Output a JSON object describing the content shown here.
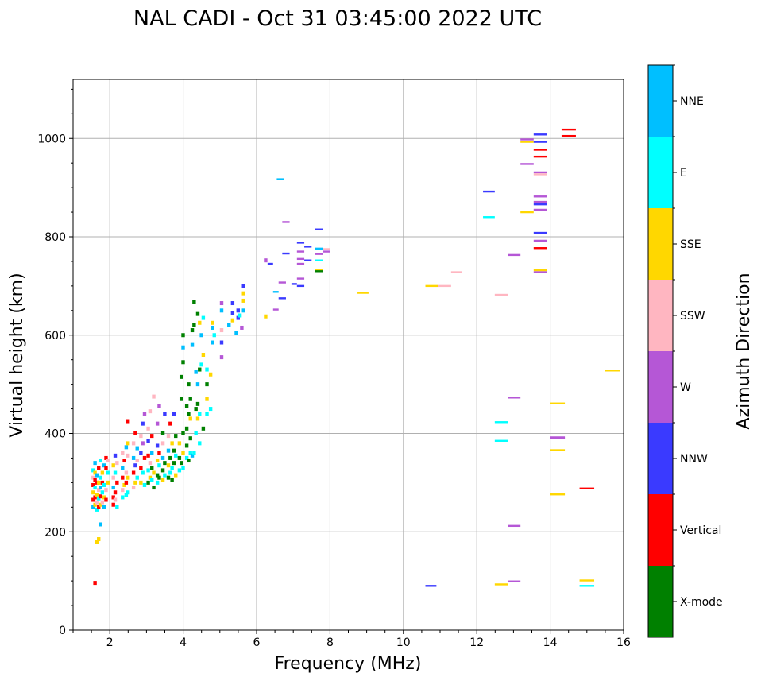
{
  "chart_data": {
    "type": "scatter",
    "title": "NAL CADI - Oct 31 03:45:00 2022 UTC",
    "xlabel": "Frequency (MHz)",
    "ylabel": "Virtual height (km)",
    "xlim": [
      1,
      16
    ],
    "ylim": [
      0,
      1120
    ],
    "xticks": [
      2,
      4,
      6,
      8,
      10,
      12,
      14,
      16
    ],
    "yticks": [
      0,
      200,
      400,
      600,
      800,
      1000
    ],
    "grid": true,
    "colorbar": {
      "label": "Azimuth Direction",
      "categories": [
        {
          "name": "X-mode",
          "color": "#008000"
        },
        {
          "name": "Vertical",
          "color": "#ff0000"
        },
        {
          "name": "NNW",
          "color": "#3a3aff"
        },
        {
          "name": "W",
          "color": "#b557d6"
        },
        {
          "name": "SSW",
          "color": "#ffb6c1"
        },
        {
          "name": "SSE",
          "color": "#ffd700"
        },
        {
          "name": "E",
          "color": "#00ffff"
        },
        {
          "name": "NNE",
          "color": "#00bfff"
        }
      ]
    },
    "echoes_note": "cells: [freq MHz, height km, category index]; segments: [f start, f end, height km, category index]",
    "cells": [
      [
        1.55,
        96,
        1
      ],
      [
        1.6,
        180,
        5
      ],
      [
        1.65,
        185,
        5
      ],
      [
        1.7,
        215,
        7
      ],
      [
        1.5,
        250,
        7
      ],
      [
        1.5,
        265,
        1
      ],
      [
        1.5,
        280,
        5
      ],
      [
        1.5,
        295,
        1
      ],
      [
        1.5,
        310,
        4
      ],
      [
        1.5,
        325,
        6
      ],
      [
        1.55,
        255,
        5
      ],
      [
        1.55,
        270,
        1
      ],
      [
        1.55,
        290,
        6
      ],
      [
        1.55,
        305,
        1
      ],
      [
        1.55,
        320,
        5
      ],
      [
        1.55,
        340,
        7
      ],
      [
        1.6,
        245,
        6
      ],
      [
        1.6,
        260,
        4
      ],
      [
        1.6,
        275,
        5
      ],
      [
        1.6,
        300,
        1
      ],
      [
        1.6,
        315,
        7
      ],
      [
        1.65,
        250,
        1
      ],
      [
        1.65,
        268,
        6
      ],
      [
        1.65,
        285,
        4
      ],
      [
        1.65,
        300,
        5
      ],
      [
        1.65,
        330,
        1
      ],
      [
        1.7,
        255,
        5
      ],
      [
        1.7,
        272,
        1
      ],
      [
        1.7,
        290,
        7
      ],
      [
        1.7,
        310,
        6
      ],
      [
        1.7,
        345,
        6
      ],
      [
        1.75,
        260,
        4
      ],
      [
        1.75,
        280,
        6
      ],
      [
        1.75,
        300,
        1
      ],
      [
        1.75,
        320,
        5
      ],
      [
        1.8,
        250,
        7
      ],
      [
        1.8,
        270,
        5
      ],
      [
        1.8,
        295,
        6
      ],
      [
        1.8,
        335,
        7
      ],
      [
        1.85,
        265,
        1
      ],
      [
        1.85,
        285,
        4
      ],
      [
        1.85,
        330,
        1
      ],
      [
        1.85,
        350,
        1
      ],
      [
        1.9,
        300,
        5
      ],
      [
        1.9,
        320,
        6
      ],
      [
        1.9,
        345,
        4
      ],
      [
        2.05,
        255,
        1
      ],
      [
        2.05,
        270,
        1
      ],
      [
        2.05,
        290,
        7
      ],
      [
        2.05,
        310,
        4
      ],
      [
        2.05,
        335,
        5
      ],
      [
        2.1,
        265,
        4
      ],
      [
        2.1,
        280,
        1
      ],
      [
        2.1,
        320,
        6
      ],
      [
        2.1,
        355,
        2
      ],
      [
        2.15,
        250,
        6
      ],
      [
        2.15,
        300,
        1
      ],
      [
        2.15,
        340,
        4
      ],
      [
        2.3,
        270,
        6
      ],
      [
        2.3,
        285,
        4
      ],
      [
        2.3,
        310,
        1
      ],
      [
        2.3,
        330,
        7
      ],
      [
        2.3,
        360,
        4
      ],
      [
        2.35,
        295,
        5
      ],
      [
        2.35,
        345,
        1
      ],
      [
        2.4,
        275,
        6
      ],
      [
        2.4,
        300,
        1
      ],
      [
        2.4,
        320,
        4
      ],
      [
        2.4,
        372,
        7
      ],
      [
        2.45,
        280,
        6
      ],
      [
        2.45,
        310,
        5
      ],
      [
        2.45,
        355,
        4
      ],
      [
        2.45,
        380,
        5
      ],
      [
        2.45,
        425,
        1
      ],
      [
        2.6,
        290,
        4
      ],
      [
        2.6,
        320,
        1
      ],
      [
        2.6,
        350,
        7
      ],
      [
        2.6,
        380,
        4
      ],
      [
        2.65,
        300,
        5
      ],
      [
        2.65,
        335,
        2
      ],
      [
        2.65,
        400,
        1
      ],
      [
        2.7,
        310,
        6
      ],
      [
        2.7,
        345,
        4
      ],
      [
        2.7,
        370,
        7
      ],
      [
        2.8,
        300,
        5
      ],
      [
        2.8,
        330,
        1
      ],
      [
        2.8,
        360,
        2
      ],
      [
        2.8,
        395,
        4
      ],
      [
        2.85,
        320,
        6
      ],
      [
        2.85,
        380,
        3
      ],
      [
        2.85,
        420,
        2
      ],
      [
        2.9,
        295,
        6
      ],
      [
        2.9,
        350,
        1
      ],
      [
        2.9,
        440,
        3
      ],
      [
        3.0,
        300,
        0
      ],
      [
        3.0,
        325,
        6
      ],
      [
        3.0,
        355,
        1
      ],
      [
        3.0,
        385,
        2
      ],
      [
        3.0,
        410,
        4
      ],
      [
        3.05,
        310,
        5
      ],
      [
        3.05,
        340,
        4
      ],
      [
        3.05,
        445,
        4
      ],
      [
        3.1,
        305,
        6
      ],
      [
        3.1,
        330,
        0
      ],
      [
        3.1,
        360,
        7
      ],
      [
        3.1,
        395,
        1
      ],
      [
        3.15,
        290,
        0
      ],
      [
        3.15,
        320,
        5
      ],
      [
        3.15,
        475,
        4
      ],
      [
        3.25,
        300,
        6
      ],
      [
        3.25,
        315,
        0
      ],
      [
        3.25,
        345,
        5
      ],
      [
        3.25,
        375,
        2
      ],
      [
        3.25,
        420,
        3
      ],
      [
        3.3,
        310,
        0
      ],
      [
        3.3,
        335,
        6
      ],
      [
        3.3,
        360,
        1
      ],
      [
        3.3,
        455,
        3
      ],
      [
        3.4,
        305,
        5
      ],
      [
        3.4,
        325,
        0
      ],
      [
        3.4,
        350,
        7
      ],
      [
        3.4,
        380,
        4
      ],
      [
        3.4,
        400,
        0
      ],
      [
        3.45,
        315,
        6
      ],
      [
        3.45,
        340,
        0
      ],
      [
        3.45,
        440,
        2
      ],
      [
        3.55,
        310,
        0
      ],
      [
        3.55,
        335,
        5
      ],
      [
        3.55,
        365,
        7
      ],
      [
        3.55,
        395,
        4
      ],
      [
        3.6,
        320,
        6
      ],
      [
        3.6,
        350,
        0
      ],
      [
        3.6,
        420,
        1
      ],
      [
        3.65,
        305,
        0
      ],
      [
        3.65,
        330,
        6
      ],
      [
        3.65,
        380,
        5
      ],
      [
        3.7,
        340,
        0
      ],
      [
        3.7,
        365,
        0
      ],
      [
        3.7,
        440,
        2
      ],
      [
        3.75,
        315,
        5
      ],
      [
        3.75,
        355,
        6
      ],
      [
        3.75,
        395,
        0
      ],
      [
        3.85,
        325,
        6
      ],
      [
        3.85,
        350,
        0
      ],
      [
        3.85,
        380,
        5
      ],
      [
        3.9,
        340,
        0
      ],
      [
        3.9,
        470,
        0
      ],
      [
        3.9,
        515,
        0
      ],
      [
        3.95,
        330,
        6
      ],
      [
        3.95,
        360,
        5
      ],
      [
        3.95,
        400,
        0
      ],
      [
        3.95,
        545,
        0
      ],
      [
        3.95,
        575,
        7
      ],
      [
        3.95,
        600,
        0
      ],
      [
        4.05,
        350,
        6
      ],
      [
        4.05,
        375,
        0
      ],
      [
        4.05,
        410,
        0
      ],
      [
        4.05,
        455,
        0
      ],
      [
        4.1,
        345,
        0
      ],
      [
        4.1,
        440,
        0
      ],
      [
        4.1,
        500,
        0
      ],
      [
        4.15,
        360,
        6
      ],
      [
        4.15,
        390,
        0
      ],
      [
        4.15,
        430,
        5
      ],
      [
        4.15,
        470,
        0
      ],
      [
        4.2,
        355,
        7
      ],
      [
        4.2,
        580,
        7
      ],
      [
        4.2,
        610,
        0
      ],
      [
        4.25,
        360,
        6
      ],
      [
        4.25,
        620,
        0
      ],
      [
        4.25,
        668,
        0
      ],
      [
        4.3,
        400,
        6
      ],
      [
        4.3,
        450,
        0
      ],
      [
        4.3,
        525,
        7
      ],
      [
        4.35,
        430,
        5
      ],
      [
        4.35,
        460,
        0
      ],
      [
        4.35,
        500,
        7
      ],
      [
        4.35,
        643,
        0
      ],
      [
        4.4,
        380,
        6
      ],
      [
        4.4,
        440,
        6
      ],
      [
        4.4,
        530,
        0
      ],
      [
        4.4,
        625,
        5
      ],
      [
        4.45,
        540,
        6
      ],
      [
        4.45,
        600,
        7
      ],
      [
        4.5,
        410,
        0
      ],
      [
        4.5,
        560,
        5
      ],
      [
        4.5,
        635,
        6
      ],
      [
        4.6,
        440,
        6
      ],
      [
        4.6,
        470,
        5
      ],
      [
        4.6,
        500,
        0
      ],
      [
        4.6,
        530,
        6
      ],
      [
        4.7,
        450,
        6
      ],
      [
        4.7,
        520,
        5
      ],
      [
        4.75,
        585,
        7
      ],
      [
        4.75,
        615,
        7
      ],
      [
        4.75,
        625,
        5
      ],
      [
        4.8,
        600,
        6
      ],
      [
        5.0,
        555,
        3
      ],
      [
        5.0,
        585,
        2
      ],
      [
        5.0,
        610,
        4
      ],
      [
        5.0,
        650,
        7
      ],
      [
        5.0,
        665,
        3
      ],
      [
        5.2,
        620,
        7
      ],
      [
        5.3,
        630,
        5
      ],
      [
        5.3,
        645,
        2
      ],
      [
        5.3,
        665,
        2
      ],
      [
        5.4,
        605,
        7
      ],
      [
        5.45,
        635,
        2
      ],
      [
        5.45,
        650,
        2
      ],
      [
        5.5,
        640,
        6
      ],
      [
        5.55,
        615,
        3
      ],
      [
        5.6,
        650,
        7
      ],
      [
        5.6,
        670,
        5
      ],
      [
        5.6,
        685,
        5
      ],
      [
        5.6,
        700,
        2
      ],
      [
        6.2,
        638,
        5
      ],
      [
        6.2,
        752,
        3
      ]
    ],
    "segments": [
      [
        6.3,
        6.45,
        745,
        2
      ],
      [
        6.45,
        6.6,
        652,
        3
      ],
      [
        6.45,
        6.6,
        688,
        7
      ],
      [
        6.6,
        6.8,
        675,
        2
      ],
      [
        6.6,
        6.8,
        707,
        3
      ],
      [
        6.55,
        6.75,
        917,
        7
      ],
      [
        6.7,
        6.9,
        830,
        3
      ],
      [
        6.7,
        6.9,
        766,
        2
      ],
      [
        6.95,
        7.1,
        704,
        2
      ],
      [
        7.1,
        7.3,
        700,
        2
      ],
      [
        7.1,
        7.3,
        715,
        3
      ],
      [
        7.1,
        7.3,
        745,
        3
      ],
      [
        7.1,
        7.3,
        755,
        3
      ],
      [
        7.1,
        7.3,
        770,
        3
      ],
      [
        7.1,
        7.3,
        788,
        2
      ],
      [
        7.3,
        7.5,
        752,
        2
      ],
      [
        7.3,
        7.5,
        780,
        2
      ],
      [
        7.6,
        7.8,
        815,
        2
      ],
      [
        7.6,
        7.8,
        776,
        7
      ],
      [
        7.6,
        7.8,
        765,
        3
      ],
      [
        7.6,
        7.8,
        752,
        6
      ],
      [
        7.6,
        7.8,
        733,
        5
      ],
      [
        7.6,
        7.8,
        730,
        0
      ],
      [
        7.8,
        8.0,
        775,
        4
      ],
      [
        7.8,
        8.0,
        770,
        3
      ],
      [
        8.75,
        9.05,
        686,
        5
      ],
      [
        10.6,
        10.95,
        700,
        5
      ],
      [
        10.95,
        11.3,
        700,
        4
      ],
      [
        11.3,
        11.6,
        728,
        4
      ],
      [
        10.6,
        10.9,
        90,
        2
      ],
      [
        12.17,
        12.49,
        892,
        2
      ],
      [
        12.17,
        12.49,
        840,
        6
      ],
      [
        12.49,
        12.84,
        682,
        4
      ],
      [
        12.49,
        12.84,
        423,
        6
      ],
      [
        12.49,
        12.84,
        385,
        6
      ],
      [
        12.49,
        12.84,
        93,
        5
      ],
      [
        12.84,
        13.19,
        763,
        3
      ],
      [
        12.84,
        13.19,
        473,
        3
      ],
      [
        12.84,
        13.19,
        212,
        3
      ],
      [
        12.84,
        13.19,
        99,
        3
      ],
      [
        13.19,
        13.55,
        998,
        3
      ],
      [
        13.19,
        13.55,
        993,
        5
      ],
      [
        13.19,
        13.55,
        948,
        3
      ],
      [
        13.19,
        13.55,
        850,
        5
      ],
      [
        13.55,
        13.92,
        1008,
        2
      ],
      [
        13.55,
        13.92,
        993,
        2
      ],
      [
        13.55,
        13.92,
        977,
        1
      ],
      [
        13.55,
        13.92,
        963,
        1
      ],
      [
        13.55,
        13.92,
        931,
        3
      ],
      [
        13.55,
        13.92,
        927,
        4
      ],
      [
        13.55,
        13.92,
        882,
        3
      ],
      [
        13.55,
        13.92,
        871,
        3
      ],
      [
        13.55,
        13.92,
        866,
        2
      ],
      [
        13.55,
        13.92,
        855,
        3
      ],
      [
        13.55,
        13.92,
        808,
        2
      ],
      [
        13.55,
        13.92,
        792,
        3
      ],
      [
        13.55,
        13.92,
        777,
        1
      ],
      [
        13.55,
        13.92,
        732,
        5
      ],
      [
        13.55,
        13.92,
        728,
        3
      ],
      [
        14.0,
        14.4,
        461,
        5
      ],
      [
        14.0,
        14.4,
        392,
        3
      ],
      [
        14.0,
        14.4,
        390,
        3
      ],
      [
        14.0,
        14.4,
        366,
        5
      ],
      [
        14.0,
        14.4,
        276,
        5
      ],
      [
        14.31,
        14.7,
        1018,
        1
      ],
      [
        14.31,
        14.7,
        1005,
        1
      ],
      [
        14.8,
        15.2,
        288,
        1
      ],
      [
        14.8,
        15.2,
        101,
        5
      ],
      [
        14.8,
        15.2,
        90,
        6
      ],
      [
        15.5,
        15.9,
        528,
        5
      ]
    ]
  }
}
